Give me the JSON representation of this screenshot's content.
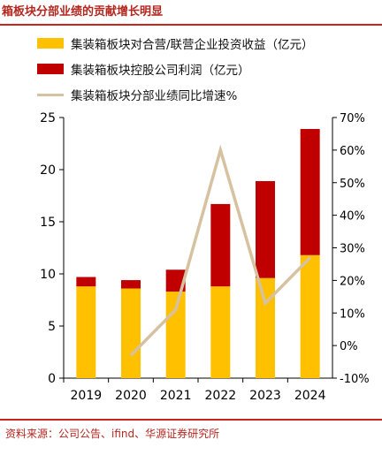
{
  "header": {
    "title": "箱板块分部业绩的贡献增长明显"
  },
  "legend": [
    {
      "label": "集装箱板块对合营/联营企业投资收益（亿元）",
      "color": "#ffc000",
      "kind": "bar"
    },
    {
      "label": "集装箱板块控股公司利润（亿元）",
      "color": "#c00000",
      "kind": "bar"
    },
    {
      "label": "集装箱板块分部业绩同比增速%",
      "color": "#d6c1a0",
      "kind": "line"
    }
  ],
  "chart_data": {
    "type": "bar",
    "stacked": true,
    "categories": [
      "2019",
      "2020",
      "2021",
      "2022",
      "2023",
      "2024"
    ],
    "series": [
      {
        "name": "集装箱板块对合营/联营企业投资收益（亿元）",
        "axis": "left",
        "color": "#ffc000",
        "values": [
          8.8,
          8.6,
          8.3,
          8.8,
          9.6,
          11.8
        ]
      },
      {
        "name": "集装箱板块控股公司利润（亿元）",
        "axis": "left",
        "color": "#c00000",
        "values": [
          0.9,
          0.8,
          2.1,
          7.9,
          9.3,
          12.1
        ]
      },
      {
        "name": "集装箱板块分部业绩同比增速%",
        "axis": "right",
        "type": "line",
        "color": "#d6c1a0",
        "values": [
          null,
          -3,
          11,
          60,
          13,
          27
        ]
      }
    ],
    "y_left": {
      "min": 0,
      "max": 25,
      "ticks": [
        "0",
        "5",
        "10",
        "15",
        "20",
        "25"
      ]
    },
    "y_right": {
      "min": -10,
      "max": 70,
      "ticks": [
        "-10%",
        "0%",
        "10%",
        "20%",
        "30%",
        "40%",
        "50%",
        "60%",
        "70%"
      ]
    },
    "xlabel": "",
    "ylabel": "",
    "grid": false
  },
  "footer": {
    "source": "资料来源：公司公告、ifind、华源证券研究所"
  }
}
